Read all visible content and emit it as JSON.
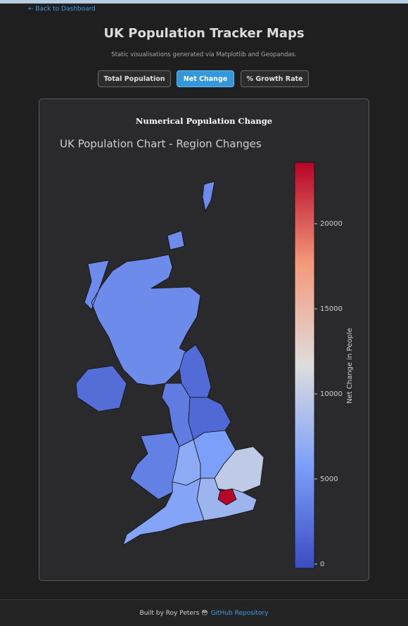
{
  "nav": {
    "back": "← Back to Dashboard"
  },
  "header": {
    "title": "UK Population Tracker Maps",
    "subtitle": "Static visualisations generated via Matplotlib and Geopandas."
  },
  "tabs": [
    "Total Population",
    "Net Change",
    "% Growth Rate"
  ],
  "card": {
    "heading": "Numerical Population Change"
  },
  "chart_data": {
    "type": "choropleth",
    "title": "UK Population Chart - Region Changes",
    "colorbar_label": "Net Change in People",
    "colormap": "coolwarm",
    "values": [
      4300,
      2200,
      2000,
      3200,
      1800,
      3500,
      6800,
      5800,
      9800,
      23500,
      7800,
      6200
    ],
    "clim": [
      -250,
      23600
    ],
    "cticks": [
      0,
      5000,
      10000,
      15000,
      20000
    ]
  },
  "footer": {
    "text": "Built by Roy Peters 😳",
    "link": "GitHub Repository"
  }
}
